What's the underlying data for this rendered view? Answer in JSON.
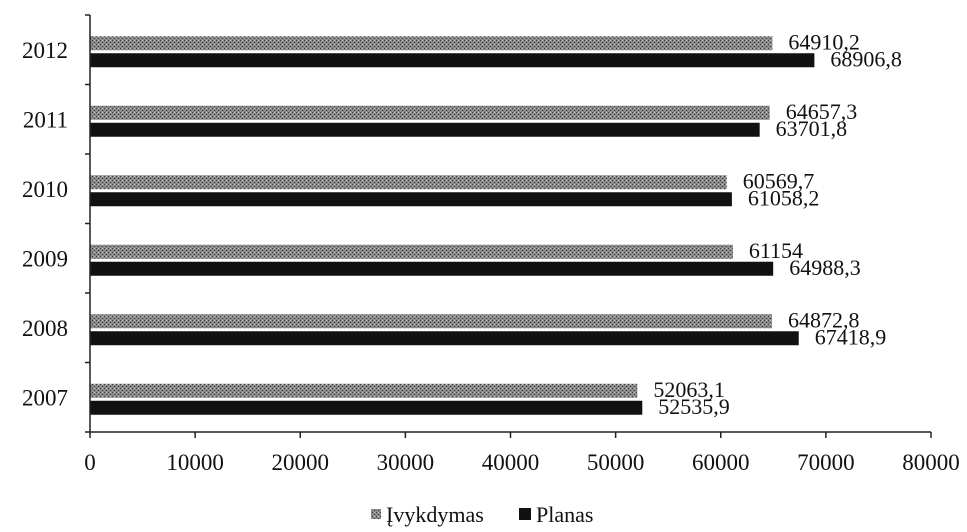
{
  "chart_data": {
    "type": "bar",
    "orientation": "horizontal",
    "categories": [
      "2007",
      "2008",
      "2009",
      "2010",
      "2011",
      "2012"
    ],
    "series": [
      {
        "name": "Įvykdymas",
        "values": [
          52063.1,
          64872.8,
          61154,
          60569.7,
          64657.3,
          64910.2
        ],
        "labels": [
          "52063,1",
          "64872,8",
          "61154",
          "60569,7",
          "64657,3",
          "64910,2"
        ],
        "color": "#7a7a7a"
      },
      {
        "name": "Planas",
        "values": [
          52535.9,
          67418.9,
          64988.3,
          61058.2,
          63701.8,
          68906.8
        ],
        "labels": [
          "52535,9",
          "67418,9",
          "64988,3",
          "61058,2",
          "63701,8",
          "68906,8"
        ],
        "color": "#111111"
      }
    ],
    "xlim": [
      0,
      80000
    ],
    "xticks": [
      "0",
      "10000",
      "20000",
      "30000",
      "40000",
      "50000",
      "60000",
      "70000",
      "80000"
    ],
    "grid": false,
    "legend_position": "bottom"
  }
}
